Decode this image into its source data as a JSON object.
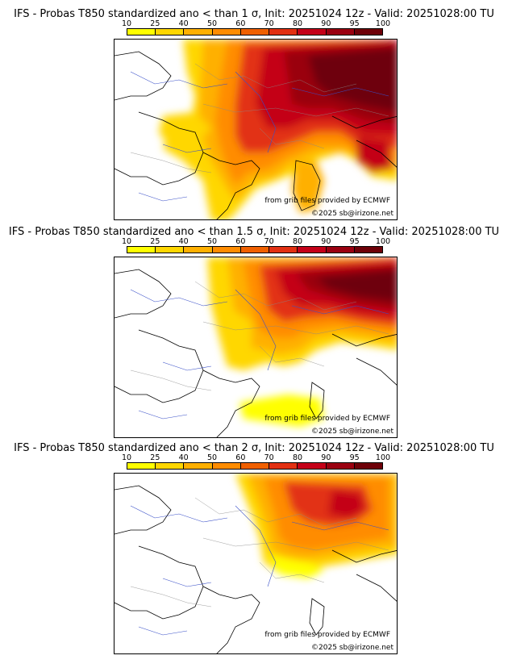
{
  "colorbar": {
    "ticks": [
      "10",
      "25",
      "40",
      "50",
      "60",
      "70",
      "80",
      "90",
      "95",
      "100"
    ],
    "colors": [
      "#ffff00",
      "#ffd700",
      "#ffb000",
      "#ff8c00",
      "#f06000",
      "#e23012",
      "#c40018",
      "#9a0010",
      "#6e0008"
    ]
  },
  "panels": [
    {
      "title": "IFS - Probas T850  standardized ano < than 1 σ, Init: 20251024 12z - Valid: 20251028:00 TU",
      "source_credit": "from grib files provided by ECMWF",
      "copyright": "©2025 sb@irizone.net"
    },
    {
      "title": "IFS - Probas T850  standardized ano < than 1.5 σ, Init: 20251024 12z - Valid: 20251028:00 TU",
      "source_credit": "from grib files provided by ECMWF",
      "copyright": "©2025 sb@irizone.net"
    },
    {
      "title": "IFS - Probas T850  standardized ano < than 2 σ, Init: 20251024 12z - Valid: 20251028:00 TU",
      "source_credit": "from grib files provided by ECMWF",
      "copyright": "©2025 sb@irizone.net"
    }
  ]
}
